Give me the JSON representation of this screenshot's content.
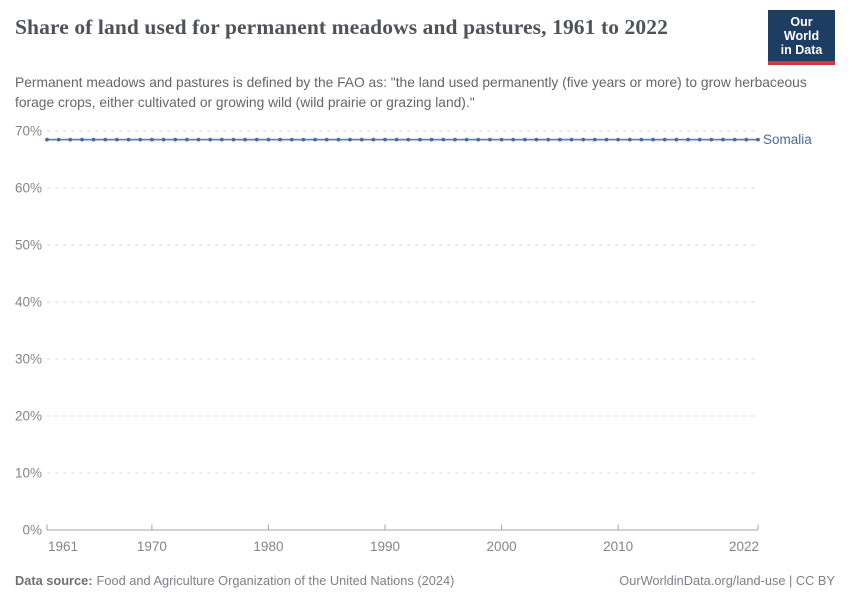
{
  "header": {
    "title": "Share of land used for permanent meadows and pastures, 1961 to 2022",
    "subtitle": "Permanent meadows and pastures is defined by the FAO as: \"the land used permanently (five years or more) to grow herbaceous forage crops, either cultivated or growing wild (wild prairie or grazing land).\"",
    "logo": {
      "line1": "Our World",
      "line2": "in Data",
      "bg_color": "#1d3d63",
      "accent_color": "#d13a34",
      "text_color": "#ffffff"
    }
  },
  "chart_data": {
    "type": "line",
    "title": "Share of land used for permanent meadows and pastures, 1961 to 2022",
    "xlabel": "",
    "ylabel": "",
    "ylim": [
      0,
      70
    ],
    "xlim": [
      1961,
      2022
    ],
    "grid": "horizontal dashed",
    "legend_position": "inline right of line end",
    "y_ticks": [
      "0%",
      "10%",
      "20%",
      "30%",
      "40%",
      "50%",
      "60%",
      "70%"
    ],
    "x_ticks": [
      1961,
      1970,
      1980,
      1990,
      2000,
      2010,
      2022
    ],
    "x": [
      1961,
      1962,
      1963,
      1964,
      1965,
      1966,
      1967,
      1968,
      1969,
      1970,
      1971,
      1972,
      1973,
      1974,
      1975,
      1976,
      1977,
      1978,
      1979,
      1980,
      1981,
      1982,
      1983,
      1984,
      1985,
      1986,
      1987,
      1988,
      1989,
      1990,
      1991,
      1992,
      1993,
      1994,
      1995,
      1996,
      1997,
      1998,
      1999,
      2000,
      2001,
      2002,
      2003,
      2004,
      2005,
      2006,
      2007,
      2008,
      2009,
      2010,
      2011,
      2012,
      2013,
      2014,
      2015,
      2016,
      2017,
      2018,
      2019,
      2020,
      2021,
      2022
    ],
    "series": [
      {
        "name": "Somalia",
        "color": "#4c6a9c",
        "values": [
          68.5,
          68.5,
          68.5,
          68.5,
          68.5,
          68.5,
          68.5,
          68.5,
          68.5,
          68.5,
          68.5,
          68.5,
          68.5,
          68.5,
          68.5,
          68.5,
          68.5,
          68.5,
          68.5,
          68.5,
          68.5,
          68.5,
          68.5,
          68.5,
          68.5,
          68.5,
          68.5,
          68.5,
          68.5,
          68.5,
          68.5,
          68.5,
          68.5,
          68.5,
          68.5,
          68.5,
          68.5,
          68.5,
          68.5,
          68.5,
          68.5,
          68.5,
          68.5,
          68.5,
          68.5,
          68.5,
          68.5,
          68.5,
          68.5,
          68.5,
          68.5,
          68.5,
          68.5,
          68.5,
          68.5,
          68.5,
          68.5,
          68.5,
          68.5,
          68.5,
          68.5,
          68.5
        ]
      }
    ]
  },
  "style_colors": {
    "grid": "#dcdcdc",
    "axis": "#a5a5a5",
    "tick_label": "#858585",
    "title": "#4e535a",
    "subtitle": "#666666",
    "footer": "#7c8288"
  },
  "footer": {
    "datasource_label": "Data source:",
    "datasource_text": "Food and Agriculture Organization of the United Nations (2024)",
    "link": "OurWorldinData.org/land-use | CC BY"
  }
}
